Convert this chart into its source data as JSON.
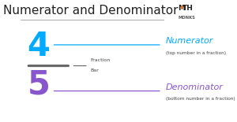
{
  "title": "Numerator and Denominator",
  "title_color": "#222222",
  "title_fontsize": 11,
  "bg_color": "#ffffff",
  "numerator_num": "4",
  "denominator_num": "5",
  "num_color": "#00aaff",
  "denom_color": "#8855cc",
  "fraction_bar_color": "#666666",
  "line_color_num": "#00aaff",
  "line_color_denom": "#8855cc",
  "numerator_label": "Numerator",
  "numerator_sub": "(top number in a fraction)",
  "denominator_label": "Denominator",
  "denominator_sub": "(bottom number in a fraction)",
  "fraction_bar_label1": "Fraction",
  "fraction_bar_label2": "Bar",
  "fraction_bar_label_color": "#444444",
  "logo_math_color": "#222222",
  "logo_a_color": "#e87722",
  "logo_sub_color": "#555555"
}
